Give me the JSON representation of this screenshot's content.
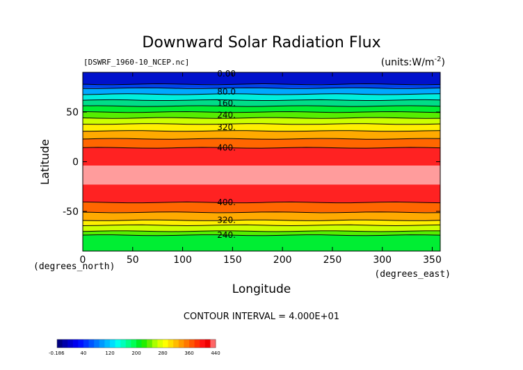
{
  "chart_data": {
    "type": "contour",
    "title": "Downward Solar Radiation Flux",
    "file_label": "[DSWRF_1960-10_NCEP.nc]",
    "units_label": "(units:W/m^-2)",
    "xlabel": "Longitude",
    "ylabel": "Latitude",
    "x_unit_label": "(degrees_east)",
    "y_unit_label": "(degrees_north)",
    "xlim": [
      0,
      358
    ],
    "ylim": [
      -90,
      90
    ],
    "x_ticks": [
      0,
      50,
      100,
      150,
      200,
      250,
      300,
      350
    ],
    "y_ticks": [
      -50,
      0,
      50
    ],
    "contour_interval_text": "CONTOUR INTERVAL = 4.000E+01",
    "bands": [
      {
        "lat_top": 90,
        "lat_bottom": 78,
        "color": "#0011cc"
      },
      {
        "lat_top": 78,
        "lat_bottom": 74,
        "color": "#0044ee"
      },
      {
        "lat_top": 74,
        "lat_bottom": 68,
        "color": "#00a8ff"
      },
      {
        "lat_top": 68,
        "lat_bottom": 62,
        "color": "#00eedd"
      },
      {
        "lat_top": 62,
        "lat_bottom": 56,
        "color": "#00dd88"
      },
      {
        "lat_top": 56,
        "lat_bottom": 50,
        "color": "#00ee33"
      },
      {
        "lat_top": 50,
        "lat_bottom": 44,
        "color": "#55ee00"
      },
      {
        "lat_top": 44,
        "lat_bottom": 38,
        "color": "#ccff00"
      },
      {
        "lat_top": 38,
        "lat_bottom": 31,
        "color": "#ffee00"
      },
      {
        "lat_top": 31,
        "lat_bottom": 23,
        "color": "#ffaa00"
      },
      {
        "lat_top": 23,
        "lat_bottom": 14,
        "color": "#ff6600"
      },
      {
        "lat_top": 14,
        "lat_bottom": -4,
        "color": "#ff2222"
      },
      {
        "lat_top": -4,
        "lat_bottom": -23,
        "color": "#ff9c9c"
      },
      {
        "lat_top": -23,
        "lat_bottom": -41,
        "color": "#ff2222"
      },
      {
        "lat_top": -41,
        "lat_bottom": -51,
        "color": "#ff6600"
      },
      {
        "lat_top": -51,
        "lat_bottom": -59,
        "color": "#ffaa00"
      },
      {
        "lat_top": -59,
        "lat_bottom": -64,
        "color": "#ffee00"
      },
      {
        "lat_top": -64,
        "lat_bottom": -70,
        "color": "#ccff00"
      },
      {
        "lat_top": -70,
        "lat_bottom": -74,
        "color": "#55ee00"
      },
      {
        "lat_top": -74,
        "lat_bottom": -90,
        "color": "#00ee33"
      }
    ],
    "contour_lines_lat": [
      78,
      74,
      68,
      62,
      56,
      50,
      44,
      38,
      31,
      23,
      14,
      -41,
      -51,
      -59,
      -64,
      -70,
      -74
    ],
    "contour_labels": [
      {
        "text": "0.00",
        "lat": 88.5,
        "lon": 130
      },
      {
        "text": "80.0",
        "lat": 70.5,
        "lon": 130
      },
      {
        "text": "160.",
        "lat": 59.0,
        "lon": 130
      },
      {
        "text": "240.",
        "lat": 47.0,
        "lon": 130
      },
      {
        "text": "320.",
        "lat": 34.5,
        "lon": 130
      },
      {
        "text": "400.",
        "lat": 14.0,
        "lon": 130
      },
      {
        "text": "400.",
        "lat": -41.0,
        "lon": 130
      },
      {
        "text": "320.",
        "lat": -59.0,
        "lon": 130
      },
      {
        "text": "240.",
        "lat": -74.0,
        "lon": 130
      }
    ],
    "colorbar": {
      "tick_labels": [
        "-0.186",
        "40",
        "120",
        "200",
        "280",
        "360",
        "440"
      ],
      "colors": [
        "#000080",
        "#0000aa",
        "#0000cc",
        "#0000ee",
        "#0011ff",
        "#0033ff",
        "#0055ff",
        "#0077ff",
        "#0099ff",
        "#00bbff",
        "#00ddff",
        "#00ffee",
        "#00ffbb",
        "#00ff88",
        "#00ff55",
        "#00ee22",
        "#22ee00",
        "#66ee00",
        "#aaff00",
        "#ddff00",
        "#ffff00",
        "#ffdd00",
        "#ffbb00",
        "#ff9900",
        "#ff7700",
        "#ff5500",
        "#ff3300",
        "#ff1111",
        "#ee0000",
        "#ff6666"
      ]
    }
  }
}
